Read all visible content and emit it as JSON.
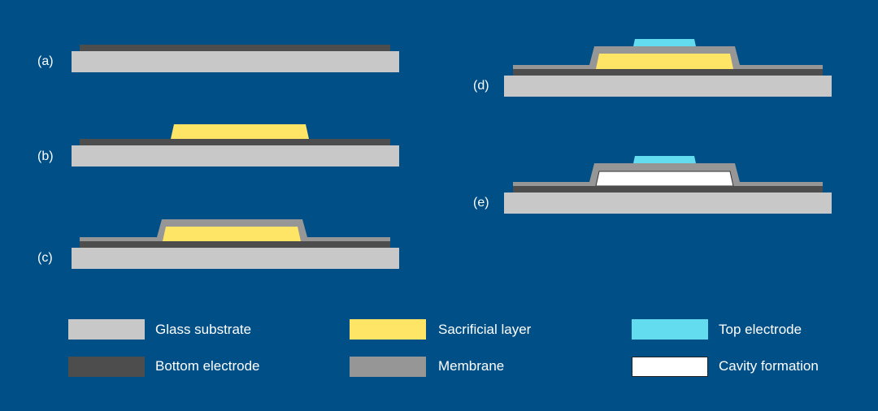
{
  "panels": [
    {
      "label": "(a)",
      "layers": [
        "bottom_electrode",
        "glass_substrate"
      ]
    },
    {
      "label": "(b)",
      "layers": [
        "sacrificial_layer",
        "bottom_electrode",
        "glass_substrate"
      ]
    },
    {
      "label": "(c)",
      "layers": [
        "membrane",
        "sacrificial_layer",
        "bottom_electrode",
        "glass_substrate"
      ]
    },
    {
      "label": "(d)",
      "layers": [
        "top_electrode",
        "membrane",
        "sacrificial_layer",
        "bottom_electrode",
        "glass_substrate"
      ]
    },
    {
      "label": "(e)",
      "layers": [
        "top_electrode",
        "membrane",
        "cavity",
        "bottom_electrode",
        "glass_substrate"
      ]
    }
  ],
  "legend": [
    {
      "label": "Glass substrate",
      "color": "#c8c8c8"
    },
    {
      "label": "Sacrificial layer",
      "color": "#ffe566"
    },
    {
      "label": "Top electrode",
      "color": "#62dcee"
    },
    {
      "label": "Bottom electrode",
      "color": "#4d4d4d"
    },
    {
      "label": "Membrane",
      "color": "#969696"
    },
    {
      "label": "Cavity formation",
      "color": "#ffffff"
    }
  ],
  "colors": {
    "background": "#004f87"
  }
}
